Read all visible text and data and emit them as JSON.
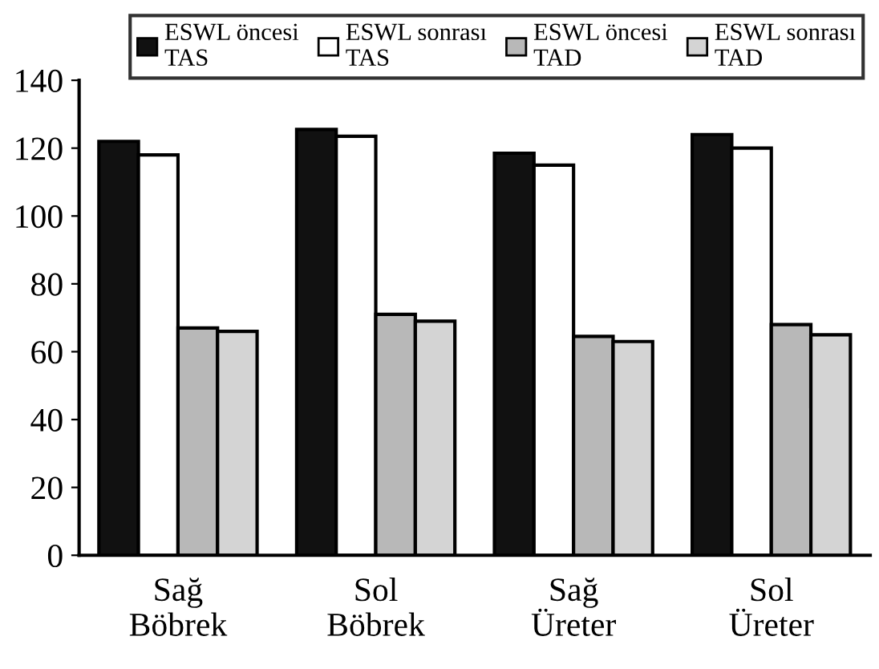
{
  "chart_data": {
    "type": "bar",
    "categories": [
      "Sağ\nBöbrek",
      "Sol\nBöbrek",
      "Sağ\nÜreter",
      "Sol\nÜreter"
    ],
    "series": [
      {
        "name": "ESWL öncesi\nTAS",
        "color": "#111111",
        "values": [
          122,
          125.5,
          118.5,
          124
        ]
      },
      {
        "name": "ESWL sonrası\nTAS",
        "color": "#ffffff",
        "values": [
          118,
          123.5,
          115,
          120
        ]
      },
      {
        "name": "ESWL öncesi\nTAD",
        "color": "#b8b8b8",
        "values": [
          67,
          71,
          64.5,
          68
        ]
      },
      {
        "name": "ESWL sonrası\nTAD",
        "color": "#d4d4d4",
        "values": [
          66,
          69,
          63,
          65
        ]
      }
    ],
    "ylim": [
      0,
      140
    ],
    "yticks": [
      0,
      20,
      40,
      60,
      80,
      100,
      120,
      140
    ],
    "grid": false,
    "legend": "top"
  }
}
